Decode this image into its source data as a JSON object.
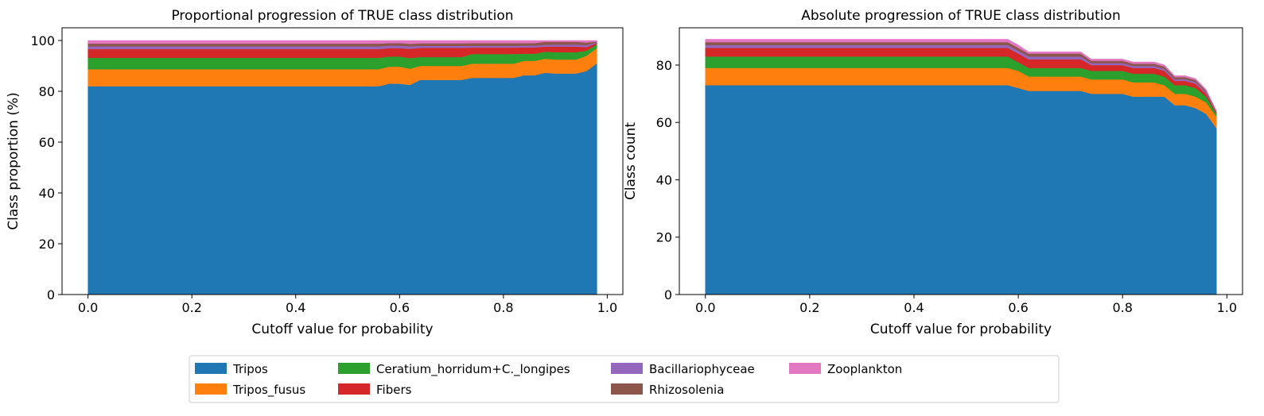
{
  "chart_data": [
    {
      "type": "area",
      "title": "Proportional progression of TRUE class distribution",
      "xlabel": "Cutoff value for probability",
      "ylabel": "Class proportion (%)",
      "xlim": [
        -0.05,
        1.03
      ],
      "ylim": [
        0,
        105
      ],
      "xticks": [
        0.0,
        0.2,
        0.4,
        0.6,
        0.8,
        1.0
      ],
      "xtick_labels": [
        "0.0",
        "0.2",
        "0.4",
        "0.6",
        "0.8",
        "1.0"
      ],
      "yticks": [
        0,
        20,
        40,
        60,
        80,
        100
      ],
      "ytick_labels": [
        "0",
        "20",
        "40",
        "60",
        "80",
        "100"
      ],
      "x": [
        0.0,
        0.54,
        0.56,
        0.58,
        0.6,
        0.62,
        0.64,
        0.72,
        0.74,
        0.8,
        0.82,
        0.84,
        0.86,
        0.88,
        0.9,
        0.92,
        0.94,
        0.96,
        0.98
      ],
      "series": [
        {
          "name": "Tripos",
          "values": [
            82.0,
            82.0,
            82.0,
            83.0,
            83.0,
            82.5,
            84.5,
            84.5,
            85.3,
            85.3,
            85.3,
            86.3,
            86.3,
            87.3,
            87.0,
            87.0,
            87.0,
            88.0,
            91.0
          ]
        },
        {
          "name": "Tripos_fusus",
          "values": [
            6.7,
            6.7,
            6.7,
            6.7,
            6.7,
            6.4,
            5.5,
            5.5,
            5.6,
            5.6,
            5.6,
            5.7,
            5.7,
            5.5,
            5.5,
            5.5,
            5.5,
            6.0,
            6.0
          ]
        },
        {
          "name": "Ceratium_horridum+C._longipes",
          "values": [
            4.5,
            4.5,
            4.5,
            4.0,
            4.0,
            4.2,
            3.5,
            3.5,
            3.8,
            3.8,
            3.8,
            2.8,
            2.8,
            2.8,
            2.9,
            2.9,
            2.9,
            2.0,
            1.5
          ]
        },
        {
          "name": "Fibers",
          "values": [
            3.4,
            3.4,
            3.4,
            3.3,
            3.3,
            3.6,
            3.6,
            3.6,
            2.5,
            2.5,
            2.5,
            2.5,
            2.5,
            2.0,
            2.2,
            2.2,
            2.2,
            1.4,
            0.5
          ]
        },
        {
          "name": "Bacillariophyceae",
          "values": [
            1.1,
            1.1,
            1.1,
            1.0,
            1.0,
            1.0,
            0.8,
            0.8,
            0.7,
            0.7,
            0.7,
            0.7,
            0.7,
            0.7,
            0.8,
            0.8,
            0.8,
            0.8,
            0.3
          ]
        },
        {
          "name": "Rhizosolenia",
          "values": [
            1.1,
            1.1,
            1.1,
            1.0,
            1.0,
            1.0,
            1.0,
            1.0,
            1.1,
            1.1,
            1.1,
            1.0,
            1.0,
            1.2,
            1.1,
            1.1,
            1.1,
            1.0,
            0.3
          ]
        },
        {
          "name": "Zooplankton",
          "values": [
            1.2,
            1.2,
            1.2,
            1.0,
            1.0,
            1.3,
            1.1,
            1.1,
            1.0,
            1.0,
            1.0,
            1.0,
            1.0,
            0.5,
            0.5,
            0.5,
            0.5,
            0.8,
            0.4
          ]
        }
      ]
    },
    {
      "type": "area",
      "title": "Absolute progression of TRUE class distribution",
      "xlabel": "Cutoff value for probability",
      "ylabel": "Class count",
      "xlim": [
        -0.05,
        1.03
      ],
      "ylim": [
        0,
        93
      ],
      "xticks": [
        0.0,
        0.2,
        0.4,
        0.6,
        0.8,
        1.0
      ],
      "xtick_labels": [
        "0.0",
        "0.2",
        "0.4",
        "0.6",
        "0.8",
        "1.0"
      ],
      "yticks": [
        0,
        20,
        40,
        60,
        80
      ],
      "ytick_labels": [
        "0",
        "20",
        "40",
        "60",
        "80"
      ],
      "x": [
        0.0,
        0.54,
        0.56,
        0.58,
        0.6,
        0.62,
        0.64,
        0.72,
        0.74,
        0.8,
        0.82,
        0.84,
        0.86,
        0.88,
        0.9,
        0.92,
        0.94,
        0.96,
        0.98
      ],
      "series": [
        {
          "name": "Tripos",
          "values": [
            73,
            73,
            73,
            73,
            72,
            71,
            71,
            71,
            70,
            70,
            69,
            69,
            69,
            69,
            66,
            66,
            65,
            63,
            58
          ]
        },
        {
          "name": "Tripos_fusus",
          "values": [
            6,
            6,
            6,
            6,
            6,
            5,
            5,
            5,
            5,
            5,
            5,
            5,
            5,
            4,
            4,
            4,
            4,
            4,
            4
          ]
        },
        {
          "name": "Ceratium_horridum+C._longipes",
          "values": [
            4,
            4,
            4,
            4,
            3,
            3,
            3,
            3,
            3,
            3,
            3,
            3,
            3,
            3,
            3,
            3,
            3,
            2,
            1
          ]
        },
        {
          "name": "Fibers",
          "values": [
            3,
            3,
            3,
            3,
            3,
            3,
            3,
            3,
            2,
            2,
            2,
            2,
            2,
            2,
            1.5,
            1.5,
            1.5,
            1,
            0.4
          ]
        },
        {
          "name": "Bacillariophyceae",
          "values": [
            1,
            1,
            1,
            1,
            1,
            1,
            1,
            1,
            0.7,
            0.7,
            0.7,
            0.7,
            0.7,
            0.7,
            0.6,
            0.6,
            0.6,
            0.5,
            0.2
          ]
        },
        {
          "name": "Rhizosolenia",
          "values": [
            1,
            1,
            1,
            1,
            1,
            1,
            1,
            1,
            0.8,
            0.8,
            0.8,
            0.8,
            0.8,
            0.8,
            0.7,
            0.7,
            0.7,
            0.6,
            0.2
          ]
        },
        {
          "name": "Zooplankton",
          "values": [
            1,
            1,
            1,
            1,
            1,
            0.6,
            0.6,
            0.6,
            0.6,
            0.6,
            0.6,
            0.6,
            0.6,
            0.6,
            0.5,
            0.5,
            0.5,
            0.5,
            0.3
          ]
        }
      ]
    }
  ],
  "legend": {
    "placement": "bottom-center",
    "entries": [
      {
        "label": "Tripos",
        "color": "#1f77b4"
      },
      {
        "label": "Tripos_fusus",
        "color": "#ff7f0e"
      },
      {
        "label": "Ceratium_horridum+C._longipes",
        "color": "#2ca02c"
      },
      {
        "label": "Fibers",
        "color": "#d62728"
      },
      {
        "label": "Bacillariophyceae",
        "color": "#9467bd"
      },
      {
        "label": "Rhizosolenia",
        "color": "#8c564b"
      },
      {
        "label": "Zooplankton",
        "color": "#e377c2"
      }
    ]
  }
}
